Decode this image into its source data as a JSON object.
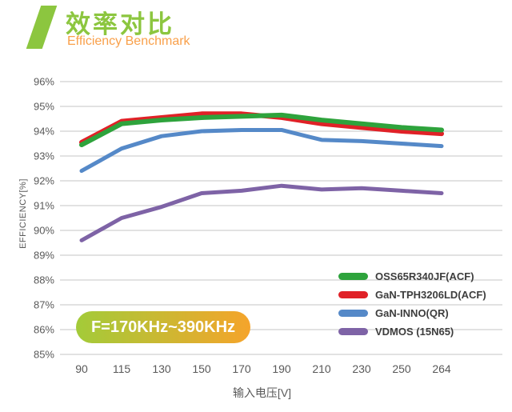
{
  "header": {
    "title": "效率对比",
    "subtitle": "Efficiency Benchmark",
    "title_color": "#8CC63F",
    "subtitle_color": "#F9A04A"
  },
  "badge": {
    "label": "F=170KHz~390KHz",
    "gradient_from": "#A3CB39",
    "gradient_to": "#F5A42B",
    "text_color": "#FFFFFF"
  },
  "chart_data": {
    "type": "line",
    "title": "效率对比 (Efficiency Benchmark)",
    "xlabel": "输入电压[V]",
    "ylabel": "EFFICIENCY[%]",
    "categories": [
      "90",
      "115",
      "130",
      "150",
      "170",
      "190",
      "210",
      "230",
      "250",
      "264"
    ],
    "ylim": [
      85,
      96
    ],
    "ytick_step": 1,
    "ytick_suffix": "%",
    "grid": true,
    "legend_position": "inside-right-middle",
    "annotation": "F=170KHz~390KHz",
    "axis_text_color": "#595959",
    "grid_color": "#D8D8D8",
    "series": [
      {
        "name": "OSS65R340JF(ACF)",
        "color": "#2EA33C",
        "values": [
          93.45,
          94.3,
          94.45,
          94.55,
          94.6,
          94.65,
          94.45,
          94.3,
          94.15,
          94.05
        ]
      },
      {
        "name": "GaN-TPH3206LD(ACF)",
        "color": "#E02127",
        "values": [
          93.55,
          94.4,
          94.55,
          94.7,
          94.7,
          94.55,
          94.3,
          94.15,
          94.0,
          93.9
        ]
      },
      {
        "name": "GaN-INNO(QR)",
        "color": "#5589C8",
        "values": [
          92.4,
          93.3,
          93.8,
          94.0,
          94.05,
          94.05,
          93.65,
          93.6,
          93.5,
          93.4
        ]
      },
      {
        "name": "VDMOS (15N65)",
        "color": "#7E63A6",
        "values": [
          89.6,
          90.5,
          90.95,
          91.5,
          91.6,
          91.8,
          91.65,
          91.7,
          91.6,
          91.5
        ]
      }
    ]
  }
}
